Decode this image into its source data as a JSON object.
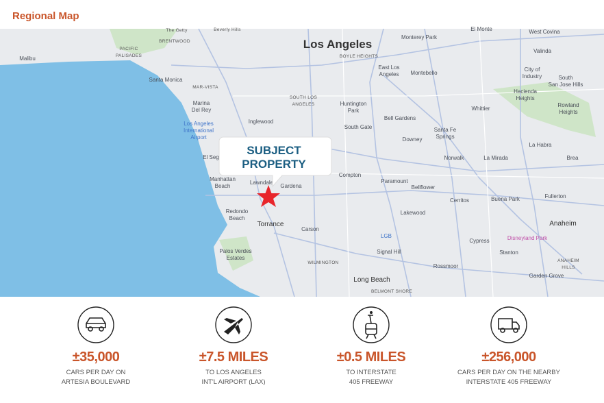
{
  "header": {
    "title": "Regional Map"
  },
  "map": {
    "callout": [
      "SUBJECT",
      "PROPERTY"
    ],
    "labels": [
      [
        "The Getty"
      ],
      [
        "Beverly Hills"
      ],
      [
        "BRENTWOOD"
      ],
      [
        "PACIFIC",
        "PALISADES"
      ],
      [
        "Malibu"
      ],
      [
        "Los Angeles"
      ],
      [
        "BOYLE HEIGHTS"
      ],
      [
        "Monterey Park"
      ],
      [
        "El Monte"
      ],
      [
        "West Covina"
      ],
      [
        "Valinda"
      ],
      [
        "East Los",
        "Angeles"
      ],
      [
        "Montebello"
      ],
      [
        "City of",
        "Industry"
      ],
      [
        "South",
        "San Jose Hills"
      ],
      [
        "Santa Monica"
      ],
      [
        "MAR-VISTA"
      ],
      [
        "SOUTH LOS",
        "ANGELES"
      ],
      [
        "Huntington",
        "Park"
      ],
      [
        "Hacienda",
        "Heights"
      ],
      [
        "Marina",
        "Del Rey"
      ],
      [
        "Whittier"
      ],
      [
        "Rowland",
        "Heights"
      ],
      [
        "Bell Gardens"
      ],
      [
        "Los Angeles",
        "International",
        "Airport"
      ],
      [
        "Inglewood"
      ],
      [
        "South Gate"
      ],
      [
        "Santa Fe",
        "Springs"
      ],
      [
        "Downey"
      ],
      [
        "El Seg"
      ],
      [
        "La Habra"
      ],
      [
        "Norwalk"
      ],
      [
        "La Mirada"
      ],
      [
        "Brea"
      ],
      [
        "Compton"
      ],
      [
        "Paramount"
      ],
      [
        "Bellflower"
      ],
      [
        "Manhattan",
        "Beach"
      ],
      [
        "Lawndale"
      ],
      [
        "Gardena"
      ],
      [
        "Cerritos"
      ],
      [
        "Buena Park"
      ],
      [
        "Fullerton"
      ],
      [
        "Redondo",
        "Beach"
      ],
      [
        "Torrance"
      ],
      [
        "Lakewood"
      ],
      [
        "Anaheim"
      ],
      [
        "Carson"
      ],
      [
        "LGB"
      ],
      [
        "Disneyland Park"
      ],
      [
        "Cypress"
      ],
      [
        "Signal Hill"
      ],
      [
        "Stanton"
      ],
      [
        "Palos Verdes",
        "Estates"
      ],
      [
        "WILMINGTON"
      ],
      [
        "Rossmoor"
      ],
      [
        "ANAHEIM",
        "HILLS"
      ],
      [
        "Long Beach"
      ],
      [
        "Garden Grove"
      ],
      [
        "BELMONT SHORE"
      ]
    ]
  },
  "stats": [
    {
      "value": "±35,000",
      "lines": [
        "CARS PER DAY ON",
        "ARTESIA BOULEVARD"
      ]
    },
    {
      "value": "±7.5 MILES",
      "lines": [
        "TO LOS ANGELES",
        "INT'L AIRPORT (LAX)"
      ]
    },
    {
      "value": "±0.5 MILES",
      "lines": [
        "TO INTERSTATE",
        "405 FREEWAY"
      ]
    },
    {
      "value": "±256,000",
      "lines": [
        "CARS PER DAY ON THE NEARBY",
        "INTERSTATE 405 FREEWAY"
      ]
    }
  ]
}
